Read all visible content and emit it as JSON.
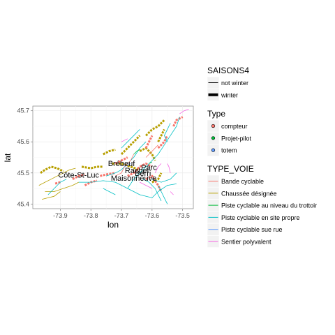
{
  "chart_data": {
    "type": "scatter",
    "xlabel": "lon",
    "ylabel": "lat",
    "xlim": [
      -73.99,
      -73.465
    ],
    "ylim": [
      45.385,
      45.715
    ],
    "x_ticks": [
      -73.9,
      -73.8,
      -73.7,
      -73.6,
      -73.5
    ],
    "y_ticks": [
      45.4,
      45.5,
      45.6,
      45.7
    ],
    "x_tick_labels": [
      "-73.9",
      "-73.8",
      "-73.7",
      "-73.6",
      "-73.5"
    ],
    "y_tick_labels": [
      "45.4",
      "45.5",
      "45.6",
      "45.7"
    ],
    "grid": true,
    "legend_position": "right",
    "legends": [
      {
        "title": "SAISONS4",
        "kind": "linewidth",
        "entries": [
          {
            "label": "not winter",
            "width": 1
          },
          {
            "label": "winter",
            "width": 4
          }
        ]
      },
      {
        "title": "Type",
        "kind": "point",
        "entries": [
          {
            "label": "compteur",
            "color": "#f8766d"
          },
          {
            "label": "Projet-pilot",
            "color": "#00ba38"
          },
          {
            "label": "totem",
            "color": "#619cff"
          }
        ]
      },
      {
        "title": "TYPE_VOIE",
        "kind": "line",
        "entries": [
          {
            "label": "Bande cyclable",
            "color": "#f8766d"
          },
          {
            "label": "Chaussée désignée",
            "color": "#b79f00"
          },
          {
            "label": "Piste cyclable au niveau du trottoir",
            "color": "#00ba38"
          },
          {
            "label": "Piste cyclable en site propre",
            "color": "#00bfc4"
          },
          {
            "label": "Piste cyclable sue rue",
            "color": "#619cff"
          },
          {
            "label": "Sentier polyvalent",
            "color": "#f564e3"
          }
        ]
      }
    ],
    "segments": [
      {
        "t": 1,
        "w": 1,
        "p": [
          [
            -73.95,
            45.44
          ],
          [
            -73.92,
            45.44
          ],
          [
            -73.89,
            45.45
          ],
          [
            -73.86,
            45.46
          ],
          [
            -73.84,
            45.47
          ]
        ]
      },
      {
        "t": 1,
        "w": 1,
        "p": [
          [
            -73.97,
            45.46
          ],
          [
            -73.95,
            45.47
          ],
          [
            -73.93,
            45.48
          ],
          [
            -73.91,
            45.49
          ],
          [
            -73.89,
            45.5
          ],
          [
            -73.87,
            45.51
          ],
          [
            -73.85,
            45.515
          ]
        ]
      },
      {
        "t": 1,
        "w": 1,
        "p": [
          [
            -73.96,
            45.415
          ],
          [
            -73.94,
            45.42
          ],
          [
            -73.92,
            45.425
          ],
          [
            -73.9,
            45.44
          ]
        ]
      },
      {
        "t": 1,
        "w": 4,
        "p": [
          [
            -73.965,
            45.5
          ],
          [
            -73.95,
            45.51
          ],
          [
            -73.93,
            45.52
          ],
          [
            -73.91,
            45.515
          ],
          [
            -73.89,
            45.505
          ]
        ]
      },
      {
        "t": 1,
        "w": 4,
        "p": [
          [
            -73.83,
            45.52
          ],
          [
            -73.8,
            45.515
          ],
          [
            -73.78,
            45.52
          ],
          [
            -73.76,
            45.52
          ]
        ]
      },
      {
        "t": 1,
        "w": 4,
        "p": [
          [
            -73.76,
            45.56
          ],
          [
            -73.74,
            45.57
          ],
          [
            -73.72,
            45.575
          ]
        ]
      },
      {
        "t": 1,
        "w": 4,
        "p": [
          [
            -73.7,
            45.56
          ],
          [
            -73.68,
            45.58
          ],
          [
            -73.66,
            45.6
          ],
          [
            -73.64,
            45.62
          ]
        ]
      },
      {
        "t": 1,
        "w": 4,
        "p": [
          [
            -73.62,
            45.62
          ],
          [
            -73.6,
            45.64
          ],
          [
            -73.58,
            45.65
          ],
          [
            -73.56,
            45.67
          ]
        ]
      },
      {
        "t": 1,
        "w": 4,
        "p": [
          [
            -73.64,
            45.57
          ],
          [
            -73.62,
            45.58
          ],
          [
            -73.6,
            45.56
          ],
          [
            -73.59,
            45.54
          ]
        ]
      },
      {
        "t": 1,
        "w": 4,
        "p": [
          [
            -73.73,
            45.53
          ],
          [
            -73.7,
            45.53
          ],
          [
            -73.67,
            45.52
          ],
          [
            -73.64,
            45.51
          ]
        ]
      },
      {
        "t": 1,
        "w": 4,
        "p": [
          [
            -73.58,
            45.6
          ],
          [
            -73.57,
            45.62
          ],
          [
            -73.56,
            45.64
          ]
        ]
      },
      {
        "t": 1,
        "w": 4,
        "p": [
          [
            -73.6,
            45.47
          ],
          [
            -73.58,
            45.48
          ],
          [
            -73.57,
            45.5
          ]
        ]
      },
      {
        "t": 0,
        "w": 4,
        "p": [
          [
            -73.82,
            45.46
          ],
          [
            -73.8,
            45.47
          ],
          [
            -73.78,
            45.475
          ]
        ]
      },
      {
        "t": 0,
        "w": 4,
        "p": [
          [
            -73.77,
            45.49
          ],
          [
            -73.75,
            45.495
          ],
          [
            -73.72,
            45.5
          ]
        ]
      },
      {
        "t": 0,
        "w": 4,
        "p": [
          [
            -73.68,
            45.49
          ],
          [
            -73.66,
            45.5
          ],
          [
            -73.64,
            45.52
          ],
          [
            -73.62,
            45.53
          ],
          [
            -73.6,
            45.52
          ]
        ]
      },
      {
        "t": 0,
        "w": 4,
        "p": [
          [
            -73.62,
            45.58
          ],
          [
            -73.61,
            45.6
          ],
          [
            -73.6,
            45.62
          ]
        ]
      },
      {
        "t": 0,
        "w": 4,
        "p": [
          [
            -73.58,
            45.58
          ],
          [
            -73.56,
            45.6
          ],
          [
            -73.55,
            45.62
          ]
        ]
      },
      {
        "t": 0,
        "w": 4,
        "p": [
          [
            -73.62,
            45.48
          ],
          [
            -73.6,
            45.49
          ],
          [
            -73.58,
            45.46
          ],
          [
            -73.57,
            45.44
          ]
        ]
      },
      {
        "t": 0,
        "w": 4,
        "p": [
          [
            -73.53,
            45.65
          ],
          [
            -73.52,
            45.67
          ],
          [
            -73.5,
            45.68
          ]
        ]
      },
      {
        "t": 0,
        "w": 4,
        "p": [
          [
            -73.86,
            45.48
          ],
          [
            -73.84,
            45.49
          ],
          [
            -73.82,
            45.495
          ]
        ]
      },
      {
        "t": 0,
        "w": 4,
        "p": [
          [
            -73.9,
            45.47
          ],
          [
            -73.92,
            45.465
          ]
        ]
      },
      {
        "t": 0,
        "w": 4,
        "p": [
          [
            -73.72,
            45.53
          ],
          [
            -73.7,
            45.54
          ],
          [
            -73.68,
            45.55
          ]
        ]
      },
      {
        "t": 3,
        "w": 1,
        "p": [
          [
            -73.84,
            45.47
          ],
          [
            -73.8,
            45.47
          ],
          [
            -73.76,
            45.475
          ],
          [
            -73.72,
            45.47
          ],
          [
            -73.68,
            45.45
          ],
          [
            -73.64,
            45.43
          ],
          [
            -73.6,
            45.42
          ],
          [
            -73.58,
            45.44
          ],
          [
            -73.55,
            45.46
          ],
          [
            -73.52,
            45.465
          ]
        ]
      },
      {
        "t": 3,
        "w": 1,
        "p": [
          [
            -73.75,
            45.49
          ],
          [
            -73.72,
            45.5
          ],
          [
            -73.7,
            45.51
          ],
          [
            -73.68,
            45.53
          ],
          [
            -73.66,
            45.55
          ],
          [
            -73.64,
            45.58
          ],
          [
            -73.62,
            45.6
          ]
        ]
      },
      {
        "t": 3,
        "w": 1,
        "p": [
          [
            -73.68,
            45.45
          ],
          [
            -73.66,
            45.48
          ],
          [
            -73.64,
            45.5
          ],
          [
            -73.62,
            45.52
          ],
          [
            -73.6,
            45.54
          ],
          [
            -73.58,
            45.56
          ],
          [
            -73.56,
            45.59
          ],
          [
            -73.54,
            45.62
          ],
          [
            -73.52,
            45.65
          ],
          [
            -73.51,
            45.68
          ]
        ]
      },
      {
        "t": 3,
        "w": 1,
        "p": [
          [
            -73.63,
            45.48
          ],
          [
            -73.61,
            45.47
          ],
          [
            -73.59,
            45.45
          ],
          [
            -73.58,
            45.43
          ],
          [
            -73.57,
            45.41
          ]
        ]
      },
      {
        "t": 3,
        "w": 1,
        "p": [
          [
            -73.7,
            45.58
          ],
          [
            -73.68,
            45.6
          ],
          [
            -73.66,
            45.62
          ],
          [
            -73.64,
            45.64
          ]
        ]
      },
      {
        "t": 3,
        "w": 1,
        "p": [
          [
            -73.6,
            45.48
          ],
          [
            -73.57,
            45.47
          ],
          [
            -73.54,
            45.48
          ],
          [
            -73.52,
            45.5
          ]
        ]
      },
      {
        "t": 3,
        "w": 1,
        "p": [
          [
            -73.94,
            45.43
          ],
          [
            -73.92,
            45.45
          ],
          [
            -73.9,
            45.47
          ],
          [
            -73.88,
            45.48
          ]
        ]
      },
      {
        "t": 3,
        "w": 1,
        "p": [
          [
            -73.58,
            45.46
          ],
          [
            -73.57,
            45.44
          ],
          [
            -73.56,
            45.42
          ],
          [
            -73.55,
            45.4
          ]
        ]
      },
      {
        "t": 3,
        "w": 1,
        "p": [
          [
            -73.55,
            45.6
          ],
          [
            -73.56,
            45.62
          ],
          [
            -73.55,
            45.64
          ],
          [
            -73.54,
            45.66
          ]
        ]
      },
      {
        "t": 3,
        "w": 1,
        "p": [
          [
            -73.76,
            45.45
          ],
          [
            -73.74,
            45.44
          ],
          [
            -73.72,
            45.43
          ]
        ]
      },
      {
        "t": 0,
        "w": 1,
        "p": [
          [
            -73.72,
            45.49
          ],
          [
            -73.7,
            45.5
          ],
          [
            -73.69,
            45.52
          ],
          [
            -73.67,
            45.54
          ],
          [
            -73.66,
            45.56
          ]
        ]
      },
      {
        "t": 0,
        "w": 1,
        "p": [
          [
            -73.62,
            45.55
          ],
          [
            -73.6,
            45.57
          ],
          [
            -73.58,
            45.59
          ]
        ]
      },
      {
        "t": 5,
        "w": 1,
        "p": [
          [
            -73.54,
            45.5
          ],
          [
            -73.545,
            45.52
          ],
          [
            -73.55,
            45.53
          ]
        ]
      },
      {
        "t": 5,
        "w": 1,
        "p": [
          [
            -73.59,
            45.5
          ],
          [
            -73.58,
            45.52
          ],
          [
            -73.57,
            45.53
          ]
        ]
      },
      {
        "t": 5,
        "w": 1,
        "p": [
          [
            -73.64,
            45.47
          ],
          [
            -73.62,
            45.46
          ],
          [
            -73.6,
            45.45
          ]
        ]
      },
      {
        "t": 5,
        "w": 1,
        "p": [
          [
            -73.51,
            45.69
          ],
          [
            -73.495,
            45.7
          ],
          [
            -73.48,
            45.705
          ]
        ]
      },
      {
        "t": 5,
        "w": 1,
        "p": [
          [
            -73.7,
            45.6
          ],
          [
            -73.68,
            45.61
          ]
        ]
      },
      {
        "t": 5,
        "w": 1,
        "p": [
          [
            -73.54,
            45.44
          ],
          [
            -73.53,
            45.43
          ]
        ]
      },
      {
        "t": 2,
        "w": 1,
        "p": [
          [
            -73.66,
            45.56
          ],
          [
            -73.65,
            45.57
          ],
          [
            -73.64,
            45.575
          ]
        ]
      },
      {
        "t": 2,
        "w": 1,
        "p": [
          [
            -73.61,
            45.53
          ],
          [
            -73.6,
            45.535
          ]
        ]
      },
      {
        "t": 4,
        "w": 1,
        "p": [
          [
            -73.69,
            45.52
          ],
          [
            -73.67,
            45.53
          ]
        ]
      }
    ],
    "annotations": [
      {
        "text": "Côte-St-Luc",
        "x": -73.84,
        "y": 45.485
      },
      {
        "text": "Brébeuf",
        "x": -73.7,
        "y": 45.522
      },
      {
        "text": "Rachel",
        "x": -73.65,
        "y": 45.5
      },
      {
        "text": "Parc",
        "x": -73.61,
        "y": 45.51
      },
      {
        "text": "Berri",
        "x": -73.63,
        "y": 45.49
      },
      {
        "text": "Maisonneuve",
        "x": -73.66,
        "y": 45.475
      }
    ]
  }
}
